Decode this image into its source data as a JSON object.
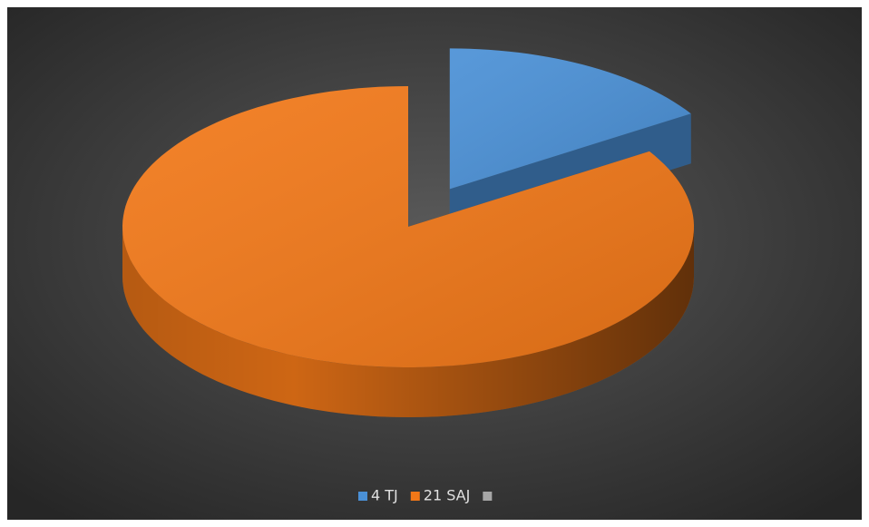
{
  "chart_data": {
    "type": "pie",
    "categories": [
      "4  TJ",
      "21 SAJ",
      null
    ],
    "values": [
      16,
      84,
      0
    ],
    "colors": [
      "#4a90d6",
      "#f27818",
      "#a6a6a6"
    ],
    "exploded": [
      0
    ],
    "legend": "bottom"
  }
}
